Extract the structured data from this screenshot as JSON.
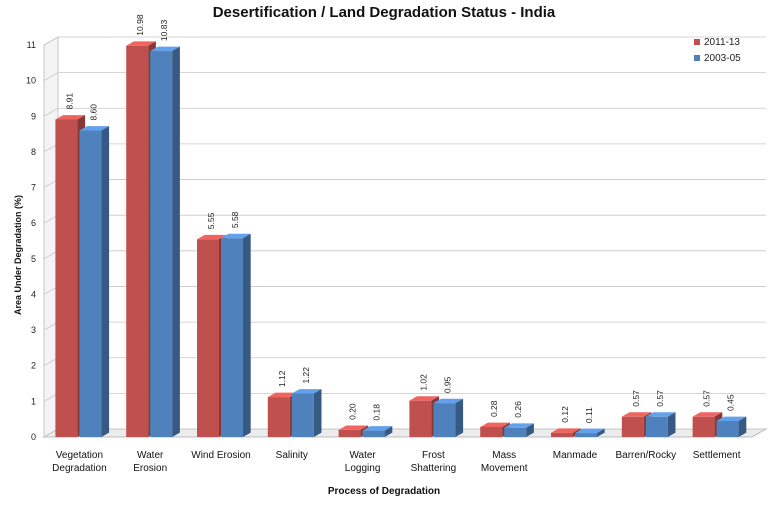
{
  "chart_data": {
    "type": "bar",
    "title": "Desertification / Land Degradation Status - India",
    "xlabel": "Process of Degradation",
    "ylabel": "Area Under Degradation (%)",
    "ylim": [
      0,
      11
    ],
    "yticks": [
      "0",
      "1",
      "2",
      "3",
      "4",
      "5",
      "6",
      "7",
      "8",
      "9",
      "10",
      "11"
    ],
    "grid": true,
    "legend_position": "top-right",
    "categories": [
      [
        "Vegetation",
        "Degradation"
      ],
      [
        "Water",
        "Erosion"
      ],
      [
        "Wind Erosion"
      ],
      [
        "Salinity"
      ],
      [
        "Water",
        "Logging"
      ],
      [
        "Frost",
        "Shattering"
      ],
      [
        "Mass",
        "Movement"
      ],
      [
        "Manmade"
      ],
      [
        "Barren/Rocky"
      ],
      [
        "Settlement"
      ]
    ],
    "series": [
      {
        "name": "2011-13",
        "color": "#c0504d",
        "values": [
          8.91,
          10.98,
          5.55,
          1.12,
          0.2,
          1.02,
          0.28,
          0.12,
          0.57,
          0.57
        ],
        "labels": [
          "8.91",
          "10.98",
          "5.55",
          "1.12",
          "0.20",
          "1.02",
          "0.28",
          "0.12",
          "0.57",
          "0.57"
        ]
      },
      {
        "name": "2003-05",
        "color": "#4f81bd",
        "values": [
          8.6,
          10.83,
          5.58,
          1.22,
          0.18,
          0.95,
          0.26,
          0.11,
          0.57,
          0.45
        ],
        "labels": [
          "8.60",
          "10.83",
          "5.58",
          "1.22",
          "0.18",
          "0.95",
          "0.26",
          "0.11",
          "0.57",
          "0.45"
        ]
      }
    ]
  }
}
